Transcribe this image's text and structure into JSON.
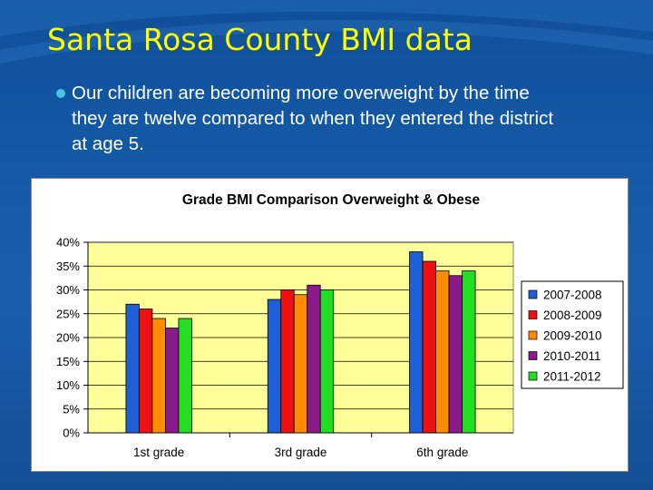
{
  "slide": {
    "title": "Santa Rosa County BMI data",
    "bullet": "Our children are becoming more overweight by the time they are twelve compared to when they entered the district at age 5."
  },
  "chart_data": {
    "type": "bar",
    "title": "Grade BMI Comparison Overweight & Obese",
    "categories": [
      "1st grade",
      "3rd grade",
      "6th grade"
    ],
    "series": [
      {
        "name": "2007-2008",
        "values": [
          27,
          28,
          38
        ],
        "color": "#1f5fd6"
      },
      {
        "name": "2008-2009",
        "values": [
          26,
          30,
          36
        ],
        "color": "#ee1111"
      },
      {
        "name": "2009-2010",
        "values": [
          24,
          29,
          34
        ],
        "color": "#ff8c00"
      },
      {
        "name": "2010-2011",
        "values": [
          22,
          31,
          33
        ],
        "color": "#8a1a8a"
      },
      {
        "name": "2011-2012",
        "values": [
          24,
          30,
          34
        ],
        "color": "#22dd22"
      }
    ],
    "ylim": [
      0,
      40
    ],
    "yticks": [
      "0%",
      "5%",
      "10%",
      "15%",
      "20%",
      "25%",
      "30%",
      "35%",
      "40%"
    ],
    "grid": true,
    "legend": "right",
    "plot_background": "#ffff99"
  }
}
